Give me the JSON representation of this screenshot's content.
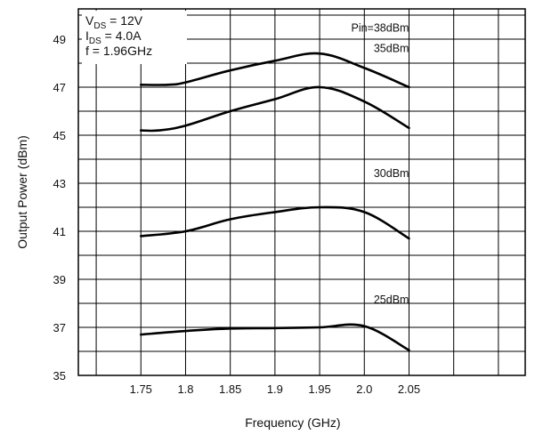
{
  "chart_data": {
    "type": "line",
    "title": "",
    "xlabel": "Frequency (GHz)",
    "ylabel": "Output Power (dBm)",
    "x_ticks": [
      "1.75",
      "1.8",
      "1.85",
      "1.9",
      "1.95",
      "2.0",
      "2.05"
    ],
    "y_ticks": [
      "35",
      "37",
      "39",
      "41",
      "43",
      "45",
      "47",
      "49"
    ],
    "xlim": [
      1.68,
      2.18
    ],
    "ylim": [
      35,
      50
    ],
    "grid": true,
    "annotation": {
      "lines": [
        {
          "main": "V",
          "sub": "DS",
          "rest": " = 12V"
        },
        {
          "main": "I",
          "sub": "DS",
          "rest": " = 4.0A"
        },
        {
          "main": "f = 1.96GHz",
          "sub": "",
          "rest": ""
        }
      ]
    },
    "series": [
      {
        "name": "Pin=38dBm",
        "x": [
          1.75,
          1.78,
          1.8,
          1.85,
          1.9,
          1.95,
          2.0,
          2.05
        ],
        "values": [
          47.1,
          47.1,
          47.2,
          47.7,
          48.1,
          48.4,
          47.8,
          47.0
        ]
      },
      {
        "name": "35dBm",
        "x": [
          1.75,
          1.77,
          1.8,
          1.85,
          1.9,
          1.95,
          2.0,
          2.05
        ],
        "values": [
          45.2,
          45.2,
          45.4,
          46.0,
          46.5,
          47.0,
          46.4,
          45.3
        ]
      },
      {
        "name": "30dBm",
        "x": [
          1.75,
          1.8,
          1.85,
          1.9,
          1.95,
          2.0,
          2.05
        ],
        "values": [
          40.8,
          41.0,
          41.5,
          41.8,
          42.0,
          41.8,
          40.7
        ]
      },
      {
        "name": "25dBm",
        "x": [
          1.75,
          1.8,
          1.85,
          1.9,
          1.95,
          2.0,
          2.05
        ],
        "values": [
          36.7,
          36.85,
          36.95,
          36.97,
          37.0,
          37.05,
          36.05
        ]
      }
    ]
  }
}
